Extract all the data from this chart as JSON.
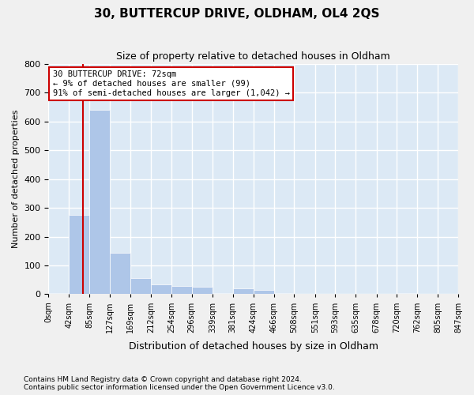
{
  "title1": "30, BUTTERCUP DRIVE, OLDHAM, OL4 2QS",
  "title2": "Size of property relative to detached houses in Oldham",
  "xlabel": "Distribution of detached houses by size in Oldham",
  "ylabel": "Number of detached properties",
  "property_size": 72,
  "property_label": "30 BUTTERCUP DRIVE: 72sqm",
  "pct_smaller": 9,
  "n_smaller": 99,
  "pct_larger_semi": 91,
  "n_larger_semi": 1042,
  "bin_edges": [
    0,
    42,
    85,
    127,
    169,
    212,
    254,
    296,
    339,
    381,
    424,
    466,
    508,
    551,
    593,
    635,
    678,
    720,
    762,
    805,
    847
  ],
  "bar_heights": [
    5,
    275,
    640,
    145,
    55,
    35,
    30,
    25,
    5,
    20,
    15,
    3,
    0,
    0,
    0,
    0,
    0,
    5,
    0,
    0
  ],
  "bar_color": "#aec6e8",
  "bar_edge_color": "#aec6e8",
  "background_color": "#dce9f5",
  "grid_color": "#ffffff",
  "vline_color": "#cc0000",
  "box_edge_color": "#cc0000",
  "box_face_color": "#ffffff",
  "ylim": [
    0,
    800
  ],
  "yticks": [
    0,
    100,
    200,
    300,
    400,
    500,
    600,
    700,
    800
  ],
  "footnote1": "Contains HM Land Registry data © Crown copyright and database right 2024.",
  "footnote2": "Contains public sector information licensed under the Open Government Licence v3.0."
}
